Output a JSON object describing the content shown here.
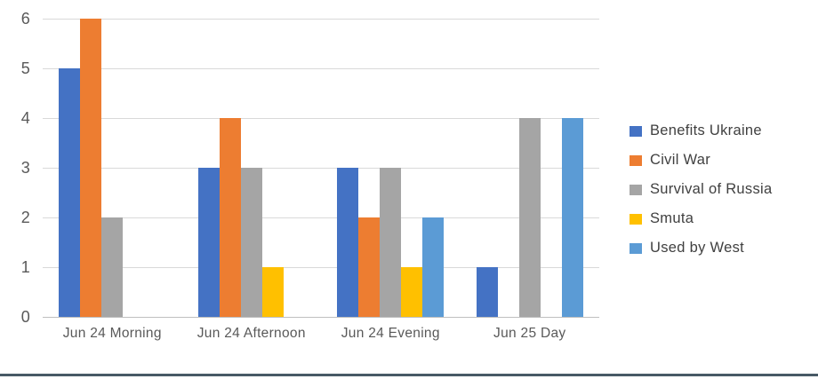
{
  "chart_data": {
    "type": "bar",
    "title": "",
    "xlabel": "",
    "ylabel": "",
    "categories": [
      "Jun 24 Morning",
      "Jun 24 Afternoon",
      "Jun 24 Evening",
      "Jun 25 Day"
    ],
    "series": [
      {
        "name": "Benefits Ukraine",
        "color": "#4472C4",
        "values": [
          5,
          3,
          3,
          1
        ]
      },
      {
        "name": "Civil War",
        "color": "#ED7D31",
        "values": [
          6,
          4,
          2,
          0
        ]
      },
      {
        "name": "Survival of Russia",
        "color": "#A5A5A5",
        "values": [
          2,
          3,
          3,
          4
        ]
      },
      {
        "name": "Smuta",
        "color": "#FFC000",
        "values": [
          0,
          1,
          1,
          0
        ]
      },
      {
        "name": "Used by West",
        "color": "#5B9BD5",
        "values": [
          0,
          0,
          2,
          4
        ]
      }
    ],
    "ylim": [
      0,
      6
    ],
    "y_ticks": [
      0,
      1,
      2,
      3,
      4,
      5,
      6
    ],
    "grid": "horizontal",
    "legend_position": "right",
    "colors": {
      "gridline": "#D9D9D9",
      "axis_line": "#BFBFBF",
      "tick_text": "#595959",
      "category_text": "#595959",
      "legend_text": "#404040",
      "bottom_rule": "#485A66"
    }
  }
}
